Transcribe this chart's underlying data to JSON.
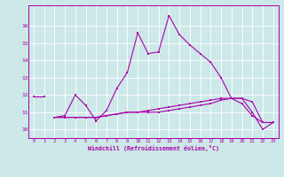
{
  "xlabel": "Windchill (Refroidissement éolien,°C)",
  "bg_color": "#cce8e8",
  "line_color": "#aa00aa",
  "xlim": [
    -0.5,
    23.5
  ],
  "ylim": [
    9.5,
    17.2
  ],
  "xticks": [
    0,
    1,
    2,
    3,
    4,
    5,
    6,
    7,
    8,
    9,
    10,
    11,
    12,
    13,
    14,
    15,
    16,
    17,
    18,
    19,
    20,
    21,
    22,
    23
  ],
  "yticks": [
    10,
    11,
    12,
    13,
    14,
    15,
    16
  ],
  "series": [
    {
      "x": [
        0,
        1
      ],
      "y": [
        11.9,
        11.9
      ]
    },
    {
      "x": [
        2,
        3,
        4,
        5,
        6,
        7,
        8,
        9,
        10,
        11,
        12,
        13,
        14,
        15,
        16,
        17,
        18,
        19,
        20,
        21,
        22,
        23
      ],
      "y": [
        10.7,
        10.8,
        12.0,
        11.4,
        10.5,
        11.1,
        12.4,
        13.3,
        15.6,
        14.4,
        14.5,
        16.6,
        15.5,
        14.9,
        14.4,
        13.9,
        13.0,
        11.8,
        11.8,
        11.0,
        10.0,
        10.4
      ]
    },
    {
      "x": [
        2,
        3,
        4,
        5,
        6,
        7,
        8,
        9,
        10,
        11,
        12,
        13,
        14,
        15,
        16,
        17,
        18,
        19,
        20,
        21,
        22,
        23
      ],
      "y": [
        10.7,
        10.7,
        10.7,
        10.7,
        10.7,
        10.8,
        10.9,
        11.0,
        11.0,
        11.0,
        11.0,
        11.1,
        11.2,
        11.3,
        11.4,
        11.5,
        11.7,
        11.8,
        11.8,
        11.6,
        10.4,
        10.4
      ]
    },
    {
      "x": [
        2,
        3,
        4,
        5,
        6,
        7,
        8,
        9,
        10,
        11,
        12,
        13,
        14,
        15,
        16,
        17,
        18,
        19,
        20,
        21,
        22,
        23
      ],
      "y": [
        10.7,
        10.7,
        10.7,
        10.7,
        10.7,
        10.8,
        10.9,
        11.0,
        11.0,
        11.1,
        11.2,
        11.3,
        11.4,
        11.5,
        11.6,
        11.7,
        11.8,
        11.8,
        11.5,
        10.8,
        10.4,
        10.4
      ]
    }
  ]
}
